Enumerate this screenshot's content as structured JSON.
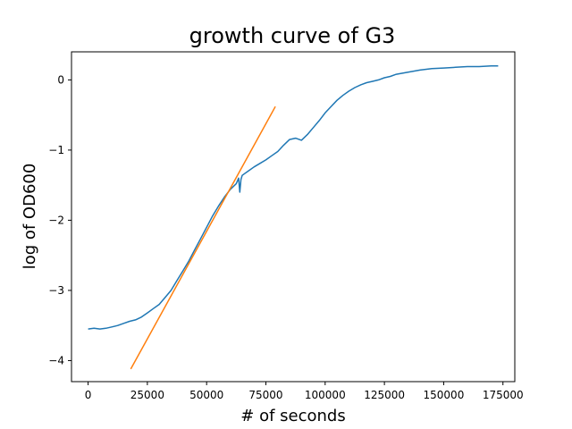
{
  "chart_data": {
    "type": "line",
    "title": "growth curve of G3",
    "xlabel": "# of seconds",
    "ylabel": "log of OD600",
    "xlim": [
      -7000,
      180000
    ],
    "ylim": [
      -4.3,
      0.4
    ],
    "xticks": [
      0,
      25000,
      50000,
      75000,
      100000,
      125000,
      150000,
      175000
    ],
    "xtick_labels": [
      "0",
      "25000",
      "50000",
      "75000",
      "100000",
      "125000",
      "150000",
      "175000"
    ],
    "yticks": [
      -4,
      -3,
      -2,
      -1,
      0
    ],
    "ytick_labels": [
      "−4",
      "−3",
      "−2",
      "−1",
      "0"
    ],
    "grid": false,
    "series": [
      {
        "color": "#1f77b4",
        "x": [
          0,
          2500,
          5000,
          7500,
          10000,
          12500,
          15000,
          17500,
          20000,
          22500,
          25000,
          27500,
          30000,
          32500,
          35000,
          37500,
          40000,
          42500,
          45000,
          47500,
          50000,
          52500,
          55000,
          57500,
          60000,
          62500,
          63500,
          64000,
          64500,
          65000,
          67500,
          70000,
          72500,
          75000,
          77500,
          80000,
          82500,
          85000,
          87500,
          90000,
          92500,
          95000,
          97500,
          100000,
          102500,
          105000,
          107500,
          110000,
          112500,
          115000,
          117500,
          120000,
          122500,
          125000,
          127500,
          130000,
          135000,
          140000,
          145000,
          150000,
          155000,
          160000,
          165000,
          170000,
          173000
        ],
        "y": [
          -3.55,
          -3.54,
          -3.55,
          -3.54,
          -3.52,
          -3.5,
          -3.47,
          -3.44,
          -3.42,
          -3.38,
          -3.32,
          -3.26,
          -3.2,
          -3.1,
          -3.0,
          -2.86,
          -2.72,
          -2.58,
          -2.42,
          -2.26,
          -2.1,
          -1.94,
          -1.8,
          -1.67,
          -1.56,
          -1.48,
          -1.4,
          -1.6,
          -1.42,
          -1.36,
          -1.3,
          -1.24,
          -1.19,
          -1.14,
          -1.08,
          -1.02,
          -0.93,
          -0.85,
          -0.83,
          -0.86,
          -0.78,
          -0.68,
          -0.58,
          -0.47,
          -0.38,
          -0.29,
          -0.22,
          -0.16,
          -0.11,
          -0.07,
          -0.04,
          -0.02,
          0.0,
          0.03,
          0.05,
          0.08,
          0.11,
          0.14,
          0.16,
          0.17,
          0.18,
          0.19,
          0.19,
          0.2,
          0.2
        ]
      },
      {
        "color": "#ff7f0e",
        "x": [
          18000,
          79000
        ],
        "y": [
          -4.12,
          -0.38
        ]
      }
    ]
  }
}
